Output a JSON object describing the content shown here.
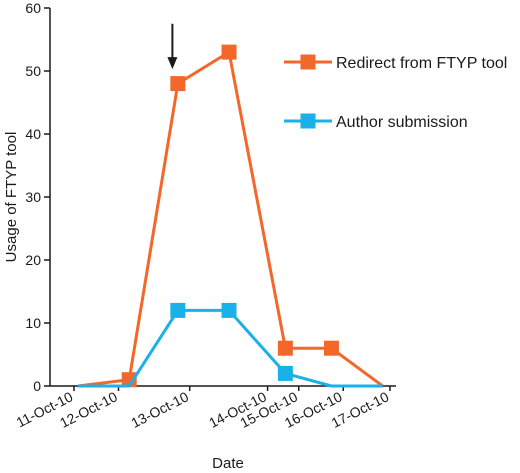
{
  "chart_data": {
    "type": "line",
    "xlabel": "Date",
    "ylabel": "Usage of FTYP tool",
    "categories": [
      "11-Oct-10",
      "12-Oct-10",
      "13-Oct-10",
      "14-Oct-10",
      "15-Oct-10",
      "16-Oct-10",
      "17-Oct-10"
    ],
    "x_positions": [
      0,
      1,
      2.6,
      4.35,
      5.05,
      6.05,
      7.1
    ],
    "y_ticks": [
      "0",
      "10",
      "20",
      "30",
      "40",
      "50",
      "60"
    ],
    "ylim": [
      0,
      60
    ],
    "grid": false,
    "legend_position": "top-right",
    "series": [
      {
        "name": "Redirect from FTYP tool",
        "color": "#f4672a",
        "points": [
          [
            0,
            0
          ],
          [
            1,
            1
          ],
          [
            1.95,
            48
          ],
          [
            2.95,
            53
          ],
          [
            4.05,
            6
          ],
          [
            4.95,
            6
          ],
          [
            5.95,
            0
          ]
        ],
        "marker_indices": [
          1,
          2,
          3,
          4,
          5
        ]
      },
      {
        "name": "Author submission",
        "color": "#1ab0e8",
        "points": [
          [
            0,
            0
          ],
          [
            1,
            0
          ],
          [
            1.95,
            12
          ],
          [
            2.95,
            12
          ],
          [
            4.05,
            2
          ],
          [
            4.95,
            0
          ],
          [
            5.95,
            0
          ]
        ],
        "marker_indices": [
          2,
          3,
          4
        ]
      }
    ],
    "annotations": [
      {
        "type": "arrow",
        "x": 2.0,
        "y_from": 57.5,
        "y_to": 50.3,
        "text": ""
      }
    ]
  }
}
